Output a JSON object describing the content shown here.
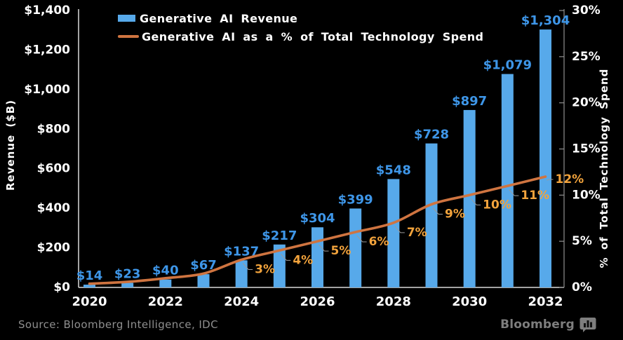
{
  "legend": {
    "items": [
      {
        "label": "Generative AI Revenue",
        "swatch": "bar"
      },
      {
        "label": "Generative AI as a % of Total Technology Spend",
        "swatch": "line"
      }
    ]
  },
  "axes": {
    "left": {
      "title": "Revenue ($B)",
      "tick_labels": [
        "$0",
        "$200",
        "$400",
        "$600",
        "$800",
        "$1,000",
        "$1,200",
        "$1,400"
      ]
    },
    "right": {
      "title": "% of Total Technology Spend",
      "tick_labels": [
        "0%",
        "5%",
        "10%",
        "15%",
        "20%",
        "25%",
        "30%"
      ]
    },
    "x": {
      "tick_labels": [
        "2020",
        "2022",
        "2024",
        "2026",
        "2028",
        "2030",
        "2032"
      ]
    }
  },
  "chart_data": {
    "type": "bar",
    "title": "",
    "categories": [
      2020,
      2021,
      2022,
      2023,
      2024,
      2025,
      2026,
      2027,
      2028,
      2029,
      2030,
      2031,
      2032
    ],
    "series": [
      {
        "name": "Generative AI Revenue",
        "type": "bar",
        "axis": "left",
        "unit": "$B",
        "values": [
          14,
          23,
          40,
          67,
          137,
          217,
          304,
          399,
          548,
          728,
          897,
          1079,
          1304
        ],
        "value_labels": [
          "$14",
          "$23",
          "$40",
          "$67",
          "$137",
          "$217",
          "$304",
          "$399",
          "$548",
          "$728",
          "$897",
          "$1,079",
          "$1,304"
        ]
      },
      {
        "name": "Generative AI as a % of Total Technology Spend",
        "type": "line",
        "axis": "right",
        "unit": "%",
        "values": [
          0.4,
          0.6,
          1,
          1.5,
          3,
          4,
          5,
          6,
          7,
          9,
          10,
          11,
          12
        ],
        "value_labels": [
          null,
          null,
          null,
          null,
          "3%",
          "4%",
          "5%",
          "6%",
          "7%",
          "9%",
          "10%",
          "11%",
          "12%"
        ]
      }
    ],
    "ylabel": "Revenue ($B)",
    "ylabel_right": "% of Total Technology Spend",
    "ylim_left": [
      0,
      1400
    ],
    "ylim_right": [
      0,
      30
    ],
    "left_tick_step": 200,
    "right_tick_step": 5,
    "x_tick_labels_shown": [
      "2020",
      "2022",
      "2024",
      "2026",
      "2028",
      "2030",
      "2032"
    ],
    "grid": false,
    "legend_position": "upper left"
  },
  "footer": {
    "source": "Source: Bloomberg Intelligence, IDC",
    "brand": "Bloomberg"
  },
  "colors": {
    "background": "#000000",
    "bar": "#57A9EA",
    "bar_label": "#3E96E8",
    "line": "#CF7440",
    "line_label": "#F2A33C",
    "axis_main": "#DBDBDB",
    "axis_right": "#8F8F8F",
    "tick_text": "#FFFFFF",
    "connector": "#9A9A9A",
    "source_text": "#8F8F8F",
    "brand": "#7E7E7E"
  }
}
